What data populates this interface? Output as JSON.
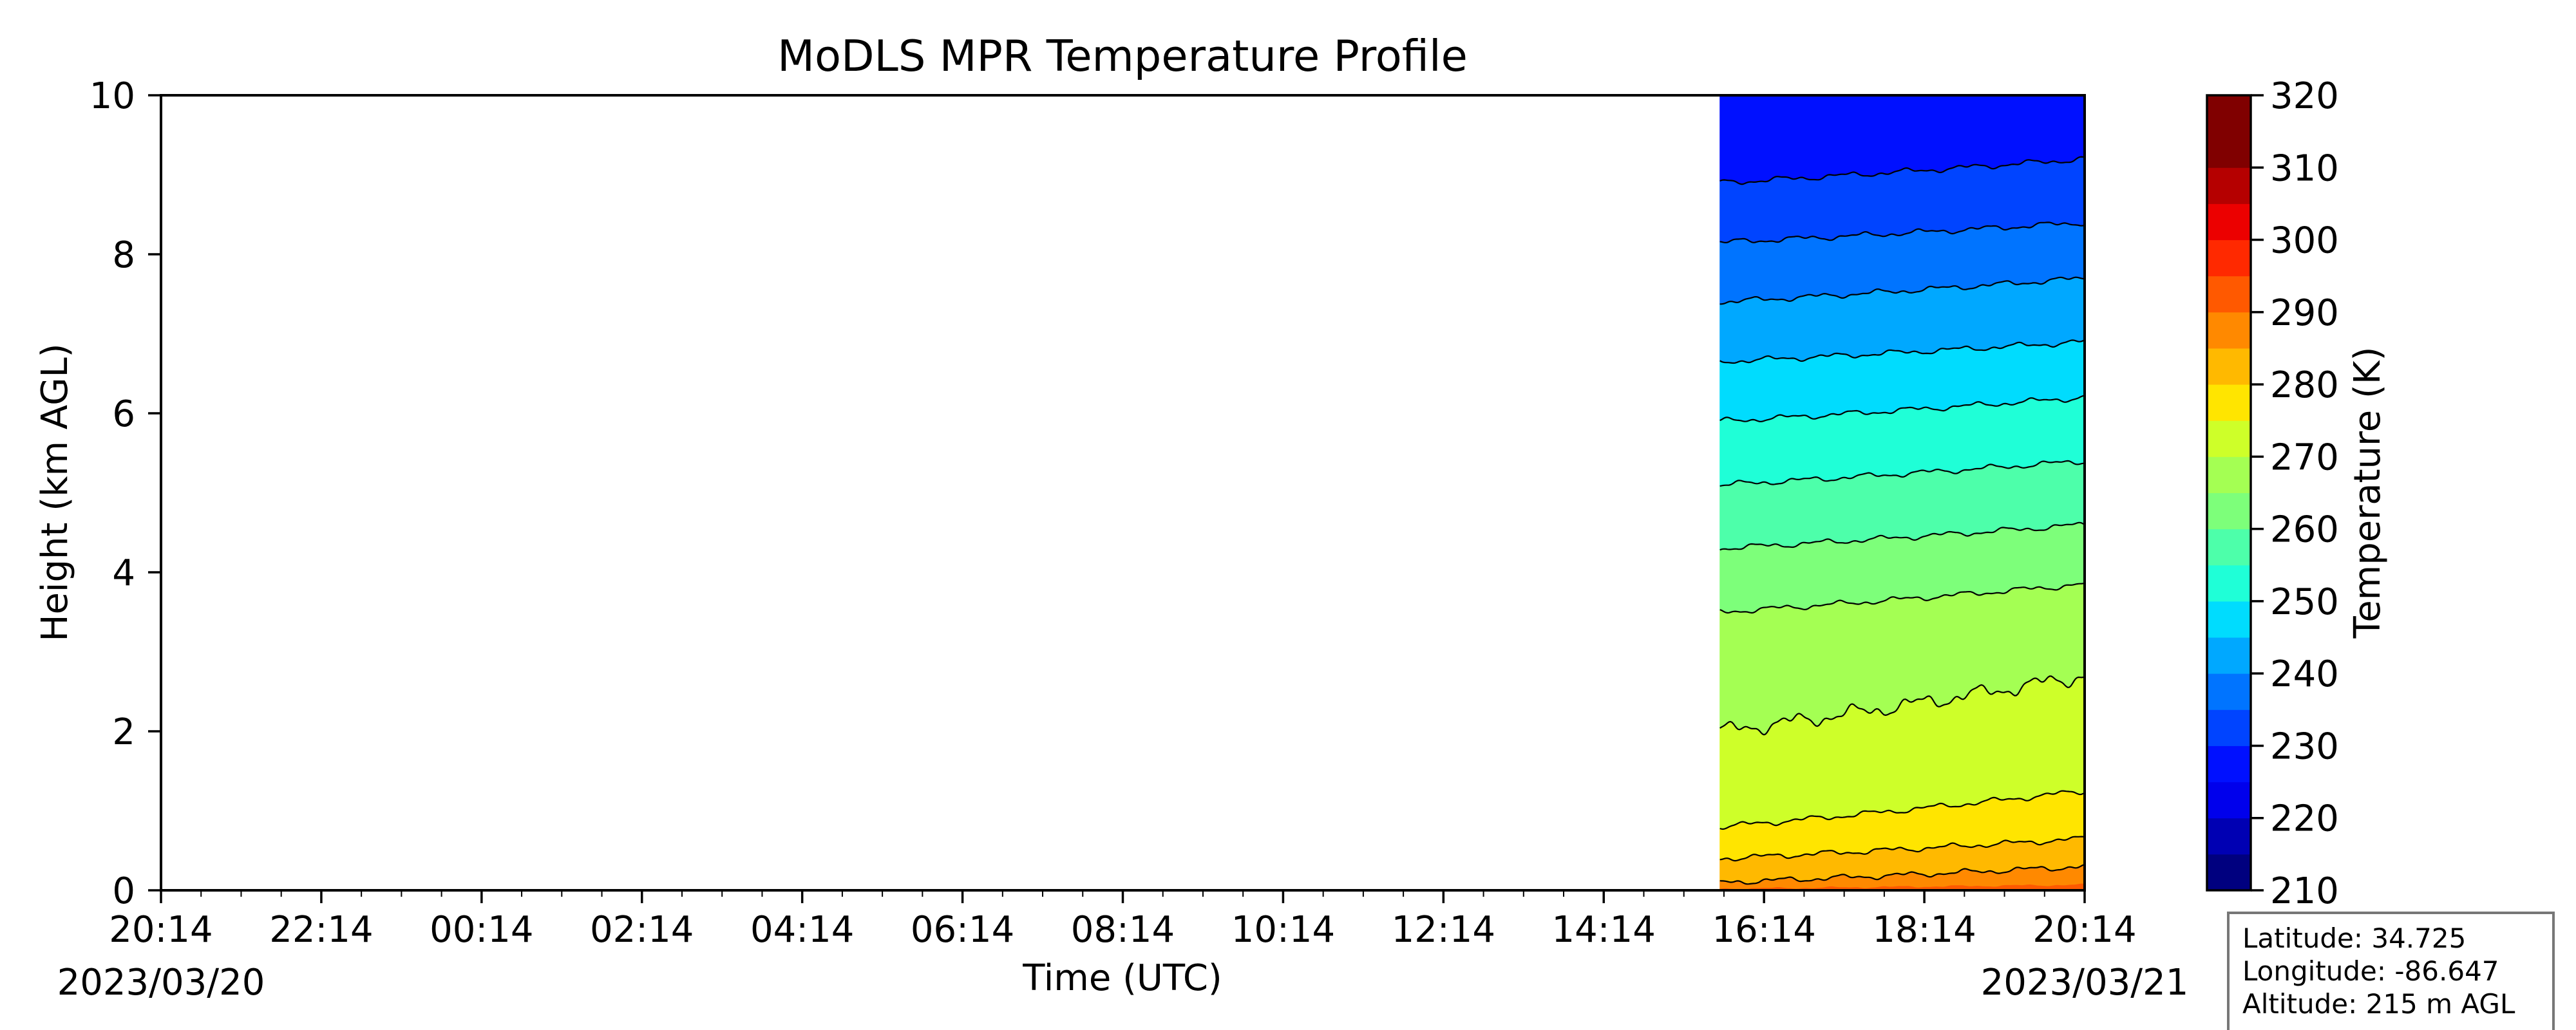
{
  "chart_data": {
    "type": "heatmap",
    "title": "MoDLS MPR Temperature Profile",
    "xlabel": "Time (UTC)",
    "ylabel": "Height (km AGL)",
    "x_tick_labels": [
      "20:14",
      "22:14",
      "00:14",
      "02:14",
      "04:14",
      "06:14",
      "08:14",
      "10:14",
      "12:14",
      "14:14",
      "16:14",
      "18:14",
      "20:14"
    ],
    "x_hours": [
      0,
      2,
      4,
      6,
      8,
      10,
      12,
      14,
      16,
      18,
      20,
      22,
      24
    ],
    "x_range_hours": [
      0,
      24
    ],
    "start_date": "2023/03/20",
    "end_date": "2023/03/21",
    "y_ticks": [
      0,
      2,
      4,
      6,
      8,
      10
    ],
    "ylim": [
      0,
      10
    ],
    "data_start_hour": 19.45,
    "colorbar": {
      "label": "Temperature (K)",
      "range": [
        210,
        320
      ],
      "ticks": [
        210,
        220,
        230,
        240,
        250,
        260,
        270,
        280,
        290,
        300,
        310,
        320
      ],
      "levels_K": [
        210,
        215,
        220,
        225,
        230,
        235,
        240,
        245,
        250,
        255,
        260,
        265,
        270,
        275,
        280,
        285,
        290,
        295,
        300,
        305,
        310,
        315,
        320
      ],
      "colors": [
        "#00007f",
        "#0000b3",
        "#0000ec",
        "#0010ff",
        "#0044ff",
        "#0074ff",
        "#00a8ff",
        "#00dcfe",
        "#1fffd7",
        "#4dffaa",
        "#7dff7a",
        "#a4ff53",
        "#ceff29",
        "#ffe500",
        "#ffb900",
        "#ff8900",
        "#ff5900",
        "#ff2900",
        "#ec0000",
        "#b50000",
        "#800000",
        "#800000"
      ]
    },
    "contours": [
      {
        "level_K": 285,
        "start_height_km": 0.1,
        "end_height_km": 0.3
      },
      {
        "level_K": 280,
        "start_height_km": 0.4,
        "end_height_km": 0.65
      },
      {
        "level_K": 275,
        "start_height_km": 0.8,
        "end_height_km": 1.25
      },
      {
        "level_K": 270,
        "start_height_km": 2.0,
        "end_height_km": 2.7
      },
      {
        "level_K": 265,
        "start_height_km": 3.5,
        "end_height_km": 3.85
      },
      {
        "level_K": 260,
        "start_height_km": 4.3,
        "end_height_km": 4.6
      },
      {
        "level_K": 255,
        "start_height_km": 5.1,
        "end_height_km": 5.4
      },
      {
        "level_K": 250,
        "start_height_km": 5.9,
        "end_height_km": 6.2
      },
      {
        "level_K": 245,
        "start_height_km": 6.65,
        "end_height_km": 6.9
      },
      {
        "level_K": 240,
        "start_height_km": 7.4,
        "end_height_km": 7.7
      },
      {
        "level_K": 235,
        "start_height_km": 8.15,
        "end_height_km": 8.4
      },
      {
        "level_K": 230,
        "start_height_km": 8.9,
        "end_height_km": 9.2
      }
    ],
    "info_box": {
      "latitude": "Latitude: 34.725",
      "longitude": "Longitude: -86.647",
      "altitude": "Altitude: 215 m AGL"
    }
  }
}
